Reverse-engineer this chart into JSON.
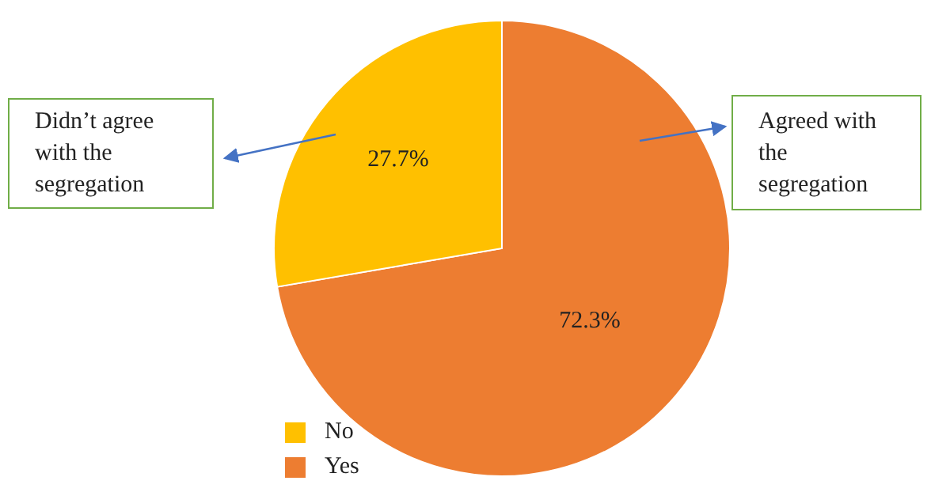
{
  "chart_data": {
    "type": "pie",
    "categories": [
      "Yes",
      "No"
    ],
    "values": [
      72.3,
      27.7
    ],
    "colors": [
      "#ed7d31",
      "#ffc000"
    ],
    "value_labels": [
      "72.3%",
      "27.7%"
    ],
    "legend": "bottom",
    "annotations": [
      "Didn’t agree with the segregation",
      "Agreed with the segregation"
    ]
  }
}
